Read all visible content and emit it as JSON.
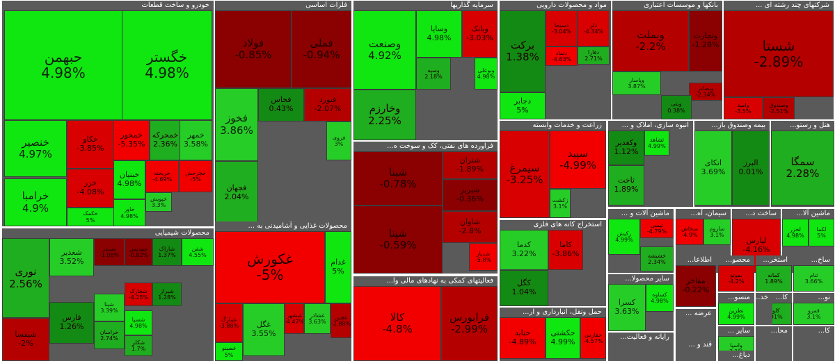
{
  "chart_data": {
    "type": "treemap",
    "sectors": [
      {
        "key": "auto",
        "title": "خودرو و ساخت قطعات",
        "tiles": [
          {
            "name": "حبهمن",
            "value": "4.98%"
          },
          {
            "name": "خگستر",
            "value": "4.98%"
          },
          {
            "name": "خنصیر",
            "value": "4.97%"
          },
          {
            "name": "خرامبا",
            "value": "4.9%"
          },
          {
            "name": "خکاو",
            "value": "-3.85%"
          },
          {
            "name": "خمحور",
            "value": "-5.35%"
          },
          {
            "name": "خمحرکه",
            "value": "2.36%"
          },
          {
            "name": "خمهر",
            "value": "3.58%"
          },
          {
            "name": "خزر",
            "value": "-4.08%"
          },
          {
            "name": "خبنیان",
            "value": "4.98%"
          },
          {
            "name": "خکمک",
            "value": "5%"
          },
          {
            "name": "خریخته",
            "value": "-4.69%"
          },
          {
            "name": "خپویش",
            "value": "3.3%"
          },
          {
            "name": "خاور",
            "value": "4.98%"
          },
          {
            "name": "خچرخش",
            "value": "-5%"
          }
        ]
      },
      {
        "key": "metal",
        "title": "فلزات اساسی",
        "tiles": [
          {
            "name": "فولاد",
            "value": "-0.85%"
          },
          {
            "name": "فملی",
            "value": "-0.94%"
          },
          {
            "name": "فخوز",
            "value": "3.86%"
          },
          {
            "name": "فخاس",
            "value": "0.43%"
          },
          {
            "name": "فنورد",
            "value": "-2.07%"
          },
          {
            "name": "فجهان",
            "value": "2.04%"
          },
          {
            "name": "فروی",
            "value": "3%"
          }
        ]
      },
      {
        "key": "invest",
        "title": "سرمایه گذاریها",
        "tiles": [
          {
            "name": "وصنعت",
            "value": "4.92%"
          },
          {
            "name": "وسایا",
            "value": "4.98%"
          },
          {
            "name": "وبانک",
            "value": "-3.03%"
          },
          {
            "name": "وخارزم",
            "value": "2.25%"
          },
          {
            "name": "وسپه",
            "value": "2.18%"
          },
          {
            "name": "وبوعلی",
            "value": "4.98%"
          }
        ]
      },
      {
        "key": "pharma",
        "title": "مواد و محصولات دارویی",
        "tiles": [
          {
            "name": "برکت",
            "value": "1.38%"
          },
          {
            "name": "دسبحا",
            "value": "-3.04%"
          },
          {
            "name": "دلر",
            "value": "-4.34%"
          },
          {
            "name": "دفارا",
            "value": "2.71%"
          },
          {
            "name": "دتماد",
            "value": "-4.63%"
          },
          {
            "name": "دجابر",
            "value": "5%"
          }
        ]
      },
      {
        "key": "bank",
        "title": "بانکها و موسسات اعتباری",
        "tiles": [
          {
            "name": "وبملت",
            "value": "-2.2%"
          },
          {
            "name": "وتجارت",
            "value": "-1.28%"
          },
          {
            "name": "وپاسار",
            "value": "3.87%"
          },
          {
            "name": "وبصادر",
            "value": "-2.34%"
          },
          {
            "name": "وبتی",
            "value": "0.38%"
          }
        ]
      },
      {
        "key": "multi",
        "title": "شرکتهای چند رشته ای ...",
        "tiles": [
          {
            "name": "شستا",
            "value": "-2.89%"
          },
          {
            "name": "وامید",
            "value": "-3.5%"
          },
          {
            "name": "وصندوق",
            "value": "-2.51%"
          }
        ]
      },
      {
        "key": "chem",
        "title": "محصولات شیمیایی",
        "tiles": [
          {
            "name": "نوری",
            "value": "2.56%"
          },
          {
            "name": "شغدیر",
            "value": "3.52%"
          },
          {
            "name": "شبندر",
            "value": "-1.06%"
          },
          {
            "name": "شپدیس",
            "value": "-0.82%"
          },
          {
            "name": "شاراک",
            "value": "1.37%"
          },
          {
            "name": "شفن",
            "value": "4.55%"
          },
          {
            "name": "شپنا",
            "value": "3.39%"
          },
          {
            "name": "شخارک",
            "value": "-4.25%"
          },
          {
            "name": "فارس",
            "value": "1.26%"
          },
          {
            "name": "شیراز",
            "value": "1.28%"
          },
          {
            "name": "خراسان",
            "value": "2.74%"
          },
          {
            "name": "شیفسا",
            "value": "-2%"
          },
          {
            "name": "شکلر",
            "value": "1.7%"
          },
          {
            "name": "شسپا",
            "value": "4.98%"
          }
        ]
      },
      {
        "key": "food",
        "title": "محصولات غذایی و آشامیدنی به ...",
        "tiles": [
          {
            "name": "غکورش",
            "value": "-5%"
          },
          {
            "name": "غدام",
            "value": "5%"
          },
          {
            "name": "غمارگ",
            "value": "-3.88%"
          },
          {
            "name": "غشاذر",
            "value": "3.63%"
          },
          {
            "name": "غگل",
            "value": "3.55%"
          },
          {
            "name": "غصینو",
            "value": "5%"
          },
          {
            "name": "غچین",
            "value": "-2.88%"
          },
          {
            "name": "غبشهر",
            "value": "-4.47%"
          }
        ]
      },
      {
        "key": "oil",
        "title": "فراورده های نفتی، کک و سوخت ه...",
        "tiles": [
          {
            "name": "شبنا",
            "value": "-0.78%"
          },
          {
            "name": "شتران",
            "value": "-1.89%"
          },
          {
            "name": "شبریز",
            "value": "-0.36%"
          },
          {
            "name": "شپنا",
            "value": "-0.59%"
          },
          {
            "name": "شاوان",
            "value": "-2.8%"
          },
          {
            "name": "شدپار",
            "value": "-5.8%"
          }
        ]
      },
      {
        "key": "finance",
        "title": "فعالیتهای کمکی به نهادهای مالی وا...",
        "tiles": [
          {
            "name": "کالا",
            "value": "-4.8%"
          },
          {
            "name": "فرابورس",
            "value": "-2.99%"
          }
        ]
      },
      {
        "key": "agri",
        "title": "زراعت و خدمات وابسته",
        "tiles": [
          {
            "name": "سیمرغ",
            "value": "-3.25%"
          },
          {
            "name": "سپید",
            "value": "-4.99%"
          },
          {
            "name": "زکشت",
            "value": "3.1%"
          }
        ]
      },
      {
        "key": "mining",
        "title": "استخراج کانه های فلزی",
        "tiles": [
          {
            "name": "کدما",
            "value": "3.22%"
          },
          {
            "name": "کاما",
            "value": "-3.86%"
          },
          {
            "name": "کگل",
            "value": "1.04%"
          }
        ]
      },
      {
        "key": "transport",
        "title": "حمل ونقل، انبارداری و ار...",
        "tiles": [
          {
            "name": "حتاید",
            "value": "-4.89%"
          },
          {
            "name": "حکشتی",
            "value": "4.99%"
          },
          {
            "name": "حفارس",
            "value": "-4.57%"
          }
        ]
      },
      {
        "key": "realestate",
        "title": "انبوه سازی، املاک و ...",
        "tiles": [
          {
            "name": "وکغدیر",
            "value": "1.12%"
          },
          {
            "name": "ثشاهد",
            "value": "4.99%"
          },
          {
            "name": "ثاخت",
            "value": "1.89%"
          }
        ]
      },
      {
        "key": "insurance",
        "title": "بیمه وصندوق باز...",
        "tiles": [
          {
            "name": "اتکای",
            "value": "3.69%"
          },
          {
            "name": "البرز",
            "value": "0.01%"
          }
        ]
      },
      {
        "key": "hotel",
        "title": "هتل و رستو...",
        "tiles": [
          {
            "name": "سمگا",
            "value": "2.28%"
          }
        ]
      },
      {
        "key": "machinery",
        "title": "ماشین آلات و ...",
        "tiles": [
          {
            "name": "رکیش",
            "value": "4.99%"
          },
          {
            "name": "تپمپی",
            "value": "-4.79%"
          },
          {
            "name": "خشیشه",
            "value": "2.34%"
          }
        ]
      },
      {
        "key": "cement",
        "title": "سیمان، آه...",
        "tiles": [
          {
            "name": "سخاش",
            "value": "-4.9%"
          },
          {
            "name": "ساروم",
            "value": "3.1%"
          }
        ]
      },
      {
        "key": "construction",
        "title": "ساخت د...",
        "tiles": [
          {
            "name": "لپارس",
            "value": "-4.16%"
          }
        ]
      },
      {
        "key": "machinery2",
        "title": "ماشین آلا...",
        "tiles": [
          {
            "name": "لخزر",
            "value": "4.98%"
          },
          {
            "name": "لکما",
            "value": "5%"
          }
        ]
      },
      {
        "key": "it",
        "title": "اطلاعا...",
        "tiles": [
          {
            "name": "مفاخر",
            "value": "-0.22%"
          }
        ]
      },
      {
        "key": "products",
        "title": "سایر محصولا...",
        "tiles": [
          {
            "name": "کسرا",
            "value": "3.63%"
          },
          {
            "name": "کساوه",
            "value": "4.98%"
          }
        ]
      },
      {
        "key": "prod2",
        "title": "محصو...",
        "tiles": [
          {
            "name": "بموتو",
            "value": "-4.2%"
          }
        ]
      },
      {
        "key": "extract",
        "title": "استخر...",
        "tiles": [
          {
            "name": "کمانه",
            "value": "1.89%"
          }
        ]
      },
      {
        "key": "build",
        "title": "ساخ...",
        "tiles": [
          {
            "name": "ثنام",
            "value": "3.66%"
          }
        ]
      },
      {
        "key": "supply",
        "title": "عرضه ...",
        "tiles": []
      },
      {
        "key": "textile",
        "title": "منسو...",
        "tiles": [
          {
            "name": "نطرین",
            "value": "4.99%"
          }
        ]
      },
      {
        "key": "other",
        "title": "سایر ...",
        "tiles": [
          {
            "name": "واسپا",
            "value": "3.1%"
          }
        ]
      },
      {
        "key": "kla",
        "title": "کا...",
        "tiles": [
          {
            "name": "کلوند",
            "value": "1.91%"
          }
        ]
      },
      {
        "key": "kh",
        "title": "خد...",
        "tiles": []
      },
      {
        "key": "no",
        "title": "نو...",
        "tiles": [
          {
            "name": "قمرو",
            "value": "3.1%"
          }
        ]
      },
      {
        "key": "radio",
        "title": "رایانه و فعالیت...",
        "tiles": []
      },
      {
        "key": "sugar",
        "title": "قند و ...",
        "tiles": []
      },
      {
        "key": "ka",
        "title": "کا...",
        "tiles": []
      },
      {
        "key": "mah",
        "title": "محا...",
        "tiles": []
      },
      {
        "key": "dab",
        "title": "دباغ...",
        "tiles": []
      }
    ]
  }
}
